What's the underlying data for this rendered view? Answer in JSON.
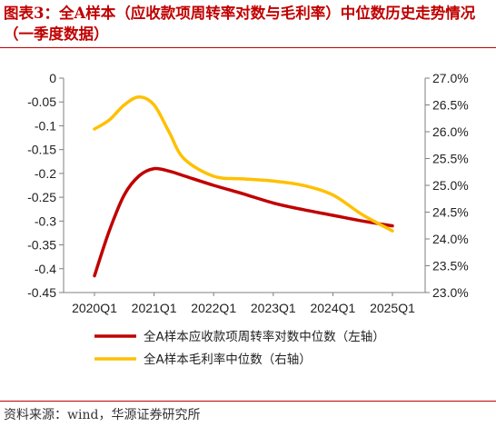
{
  "title": "图表3：全A样本（应收款项周转率对数与毛利率）中位数历史走势情况（一季度数据）",
  "source": "资料来源：wind，华源证券研究所",
  "chart_data": {
    "type": "line",
    "x_ticks": [
      "2020Q1",
      "2021Q1",
      "2022Q1",
      "2023Q1",
      "2024Q1",
      "2025Q1"
    ],
    "left_axis": {
      "ylim": [
        -0.45,
        0
      ],
      "ticks": [
        "0",
        "-0.05",
        "-0.1",
        "-0.15",
        "-0.2",
        "-0.25",
        "-0.3",
        "-0.35",
        "-0.4",
        "-0.45"
      ],
      "tick_values": [
        0,
        -0.05,
        -0.1,
        -0.15,
        -0.2,
        -0.25,
        -0.3,
        -0.35,
        -0.4,
        -0.45
      ]
    },
    "right_axis": {
      "ylim": [
        23.0,
        27.0
      ],
      "ticks": [
        "27.0%",
        "26.5%",
        "26.0%",
        "25.5%",
        "25.0%",
        "24.5%",
        "24.0%",
        "23.5%",
        "23.0%"
      ],
      "tick_values": [
        27.0,
        26.5,
        26.0,
        25.5,
        25.0,
        24.5,
        24.0,
        23.5,
        23.0
      ]
    },
    "series": [
      {
        "name": "全A样本应收款项周转率对数中位数（左轴）",
        "axis": "left",
        "color": "#c00000",
        "x": [
          2020.0,
          2020.25,
          2020.5,
          2020.75,
          2021.0,
          2021.25,
          2021.5,
          2022.0,
          2022.5,
          2023.0,
          2023.5,
          2024.0,
          2024.5,
          2025.0
        ],
        "values": [
          -0.415,
          -0.32,
          -0.245,
          -0.205,
          -0.19,
          -0.195,
          -0.205,
          -0.225,
          -0.243,
          -0.262,
          -0.276,
          -0.288,
          -0.3,
          -0.31
        ]
      },
      {
        "name": "全A样本毛利率中位数（右轴）",
        "axis": "right",
        "color": "#ffc000",
        "x": [
          2020.0,
          2020.25,
          2020.5,
          2020.75,
          2021.0,
          2021.25,
          2021.5,
          2022.0,
          2022.5,
          2023.0,
          2023.5,
          2024.0,
          2024.5,
          2025.0
        ],
        "values": [
          26.05,
          26.22,
          26.5,
          26.65,
          26.5,
          26.0,
          25.5,
          25.17,
          25.12,
          25.08,
          25.0,
          24.82,
          24.45,
          24.15
        ]
      }
    ]
  }
}
